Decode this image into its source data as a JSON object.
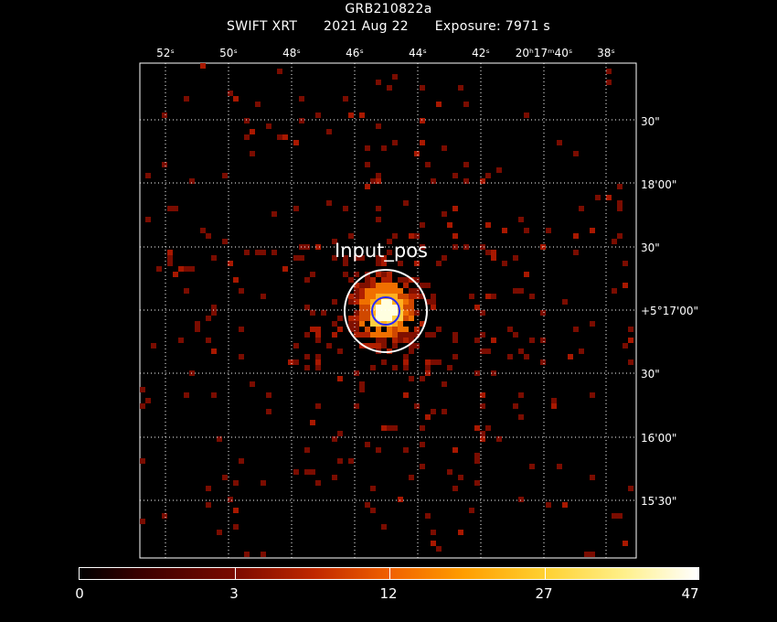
{
  "header": {
    "title": "GRB210822a",
    "instrument": "SWIFT XRT",
    "date": "2021 Aug 22",
    "exposure": "Exposure: 7971 s"
  },
  "axes": {
    "ra_ticks": [
      "52ˢ",
      "50ˢ",
      "48ˢ",
      "46ˢ",
      "44ˢ",
      "42ˢ",
      "20ʰ17ᵐ40ˢ",
      "38ˢ"
    ],
    "dec_ticks": [
      "30\"",
      "18'00\"",
      "30\"",
      "+5°17'00\"",
      "30\"",
      "16'00\"",
      "15'30\""
    ]
  },
  "annotation": {
    "label": "Input_pos"
  },
  "colorbar": {
    "labels": [
      "0",
      "3",
      "12",
      "27",
      "47"
    ],
    "values": [
      0,
      3,
      12,
      27,
      47
    ]
  },
  "colors": {
    "grid": "#ffffff",
    "background": "#000000",
    "source_circle": "#ffffff",
    "psf_circle": "#2a2aff"
  }
}
